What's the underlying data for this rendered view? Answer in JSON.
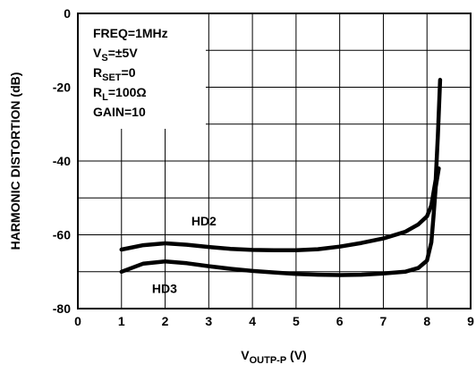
{
  "chart_data": {
    "type": "line",
    "title": "",
    "xlabel": {
      "main": "V",
      "sub": "OUTP-P",
      "unit": " (V)"
    },
    "ylabel": "HARMONIC DISTORTION (dB)",
    "xlim": [
      0,
      9
    ],
    "ylim": [
      -80,
      0
    ],
    "xticks": [
      "0",
      "1",
      "2",
      "3",
      "4",
      "5",
      "6",
      "7",
      "8",
      "9"
    ],
    "yticks": [
      "0",
      "-20",
      "-40",
      "-60",
      "-80"
    ],
    "grid": true,
    "conditions": [
      {
        "main": "FREQ=1MHz",
        "sub": "",
        "rest": ""
      },
      {
        "main": "V",
        "sub": "S",
        "rest": "=±5V"
      },
      {
        "main": "R",
        "sub": "SET",
        "rest": "=0"
      },
      {
        "main": "R",
        "sub": "L",
        "rest": "=100Ω"
      },
      {
        "main": "GAIN=10",
        "sub": "",
        "rest": ""
      }
    ],
    "series": [
      {
        "name": "HD2",
        "label_at": [
          2.6,
          -57.5
        ],
        "points": [
          [
            1,
            -64
          ],
          [
            1.5,
            -62.8
          ],
          [
            2,
            -62.3
          ],
          [
            2.5,
            -62.7
          ],
          [
            3,
            -63.3
          ],
          [
            3.5,
            -63.8
          ],
          [
            4,
            -64.1
          ],
          [
            4.5,
            -64.2
          ],
          [
            5,
            -64.2
          ],
          [
            5.5,
            -63.9
          ],
          [
            6,
            -63.2
          ],
          [
            6.5,
            -62.2
          ],
          [
            7,
            -61
          ],
          [
            7.5,
            -59.2
          ],
          [
            7.8,
            -57.2
          ],
          [
            8,
            -55
          ],
          [
            8.1,
            -52
          ],
          [
            8.2,
            -45
          ],
          [
            8.25,
            -33
          ],
          [
            8.3,
            -18
          ]
        ]
      },
      {
        "name": "HD3",
        "label_at": [
          1.7,
          -75.8
        ],
        "points": [
          [
            1,
            -70
          ],
          [
            1.5,
            -67.8
          ],
          [
            2,
            -67.2
          ],
          [
            2.5,
            -67.7
          ],
          [
            3,
            -68.5
          ],
          [
            3.5,
            -69.2
          ],
          [
            4,
            -69.8
          ],
          [
            4.5,
            -70.2
          ],
          [
            5,
            -70.6
          ],
          [
            5.5,
            -70.8
          ],
          [
            6,
            -70.9
          ],
          [
            6.5,
            -70.8
          ],
          [
            7,
            -70.5
          ],
          [
            7.5,
            -70
          ],
          [
            7.8,
            -69
          ],
          [
            8,
            -67
          ],
          [
            8.1,
            -62
          ],
          [
            8.15,
            -55
          ],
          [
            8.2,
            -47
          ],
          [
            8.27,
            -42
          ]
        ]
      }
    ]
  }
}
